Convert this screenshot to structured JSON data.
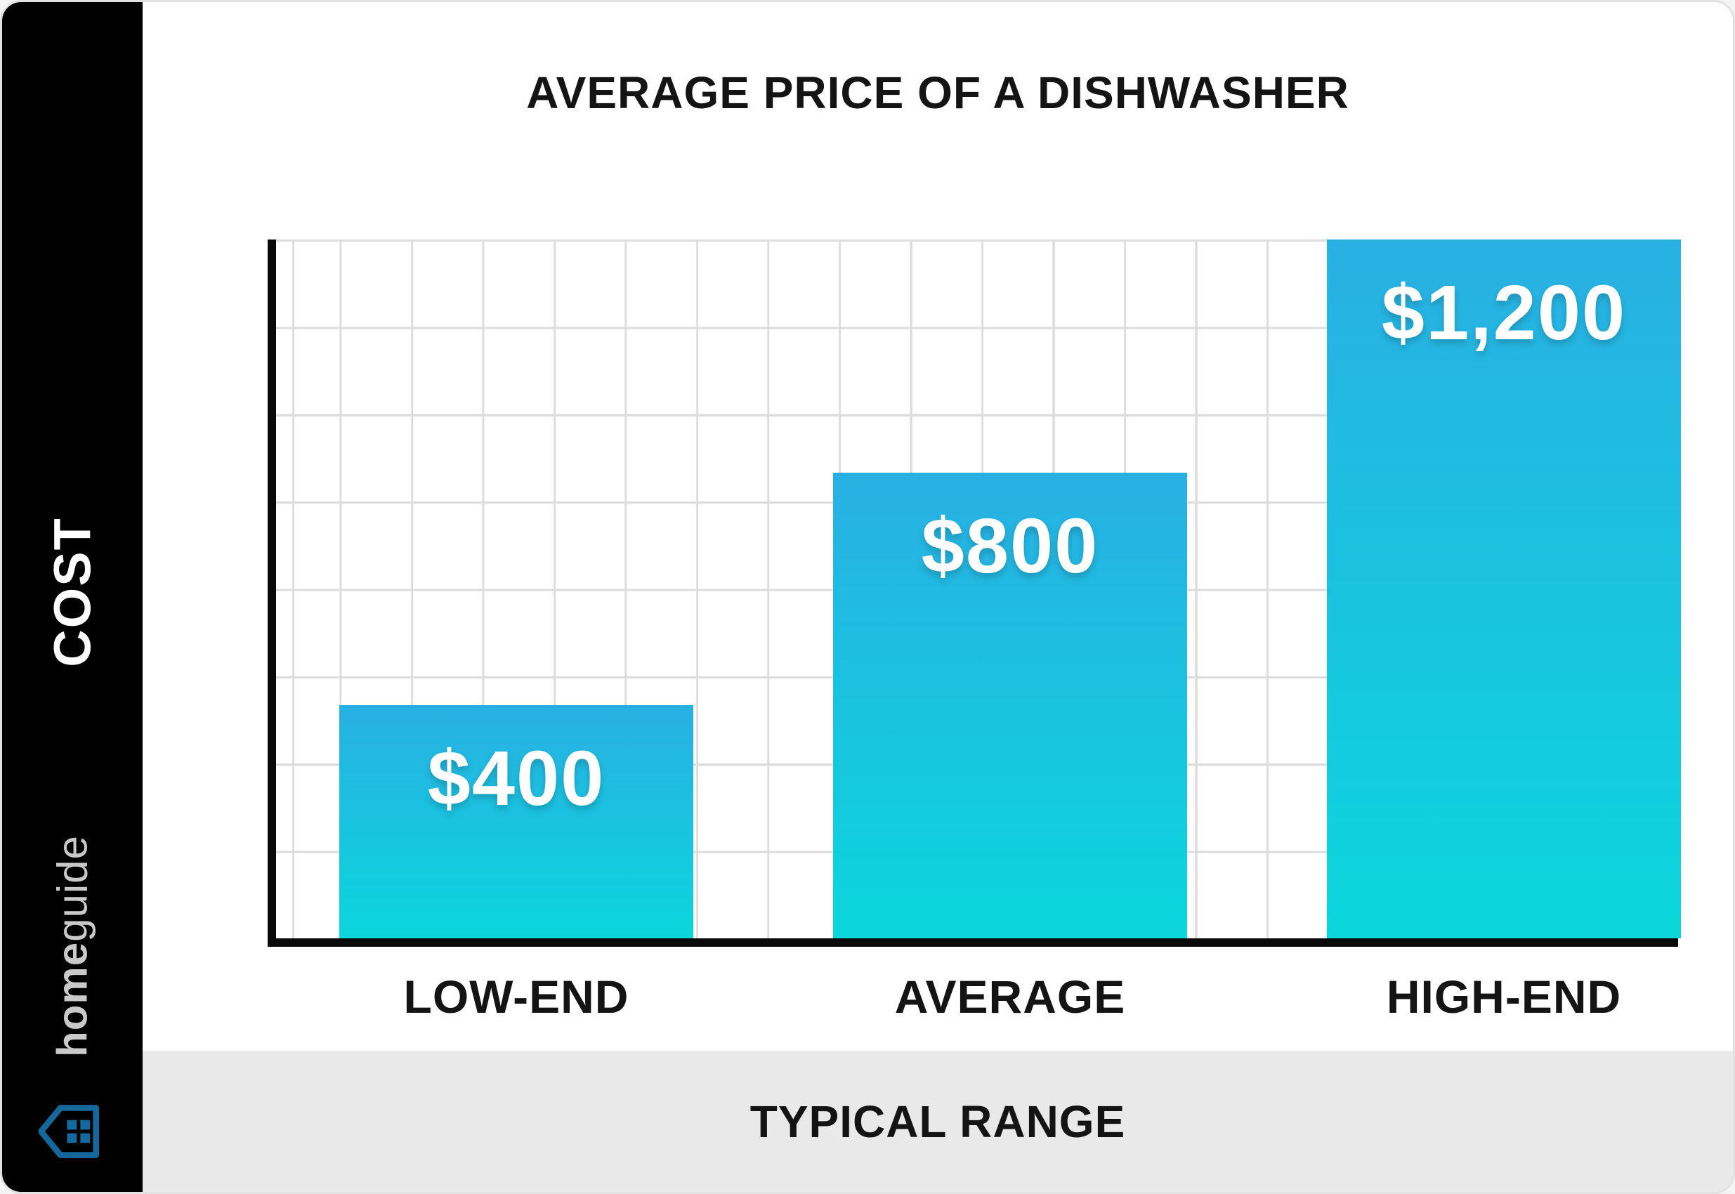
{
  "header": {
    "title": "AVERAGE PRICE OF A DISHWASHER"
  },
  "sidebar": {
    "cost_label": "COST",
    "brand_bold": "home",
    "brand_regular": "guide",
    "logo_icon": "house-left-icon",
    "background": "#000000",
    "brand_color": "#c9c9c9",
    "logo_color": "#15689c"
  },
  "footer": {
    "label": "TYPICAL RANGE",
    "background": "#e9e9e9"
  },
  "chart_data": {
    "type": "bar",
    "title": "AVERAGE PRICE OF A DISHWASHER",
    "categories": [
      "LOW-END",
      "AVERAGE",
      "HIGH-END"
    ],
    "values": [
      400,
      800,
      1200
    ],
    "value_labels": [
      "$400",
      "$800",
      "$1,200"
    ],
    "xlabel": "TYPICAL RANGE",
    "ylabel": "COST",
    "ylim": [
      0,
      1200
    ],
    "grid": true,
    "legend": false,
    "bar_gradient_top": "#29b0e3",
    "bar_gradient_bottom": "#0bd6dc",
    "axis_color": "#0a0a0a",
    "grid_color": "#dcdcdc",
    "label_color": "#ffffff"
  }
}
